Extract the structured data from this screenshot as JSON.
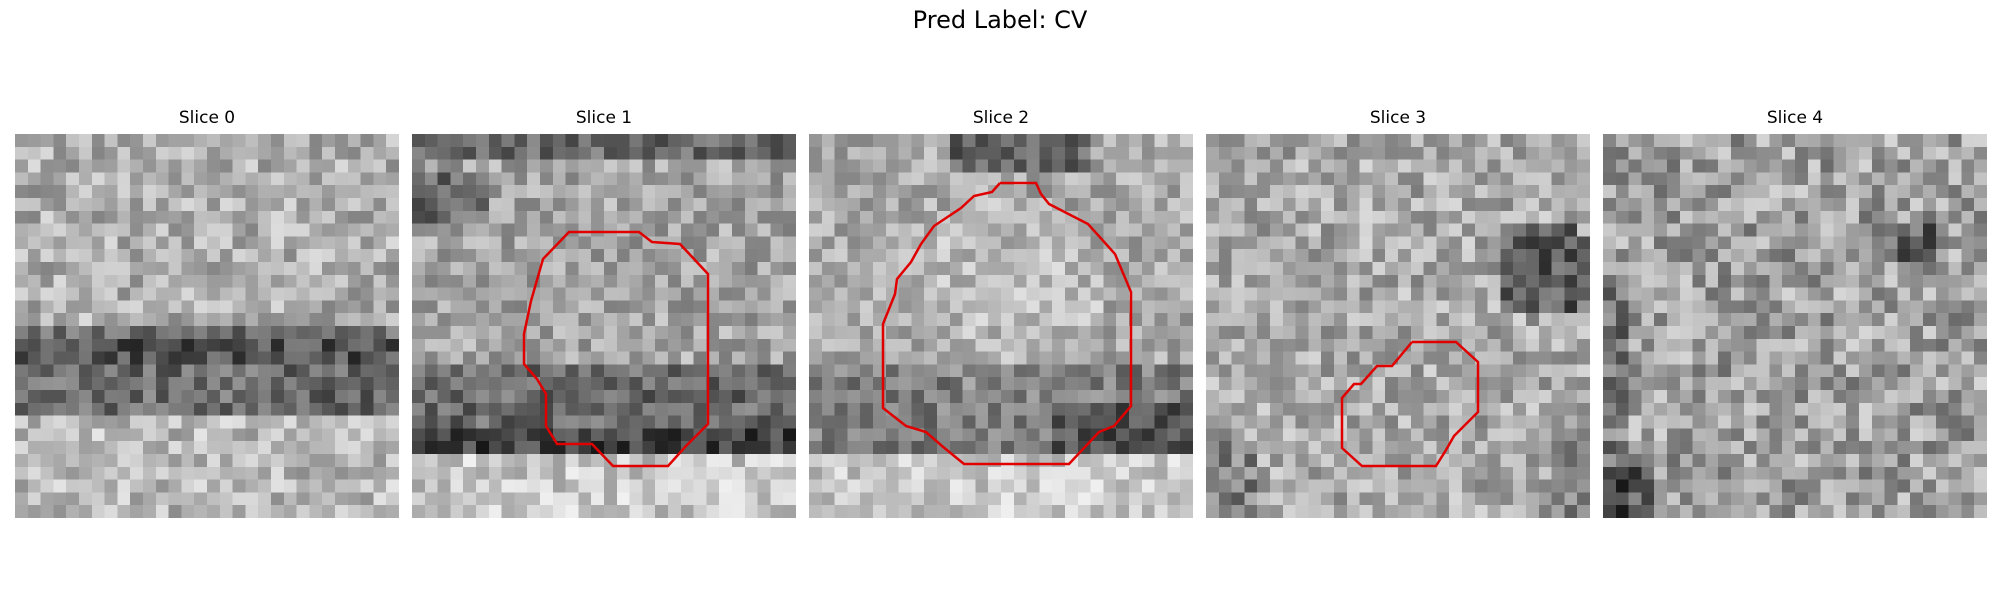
{
  "figure": {
    "suptitle": "Pred Label: CV",
    "panels": [
      {
        "title": "Slice 0"
      },
      {
        "title": "Slice 1"
      },
      {
        "title": "Slice 2"
      },
      {
        "title": "Slice 3"
      },
      {
        "title": "Slice 4"
      }
    ],
    "contour_color": "#e00000",
    "colormap": "gray"
  }
}
